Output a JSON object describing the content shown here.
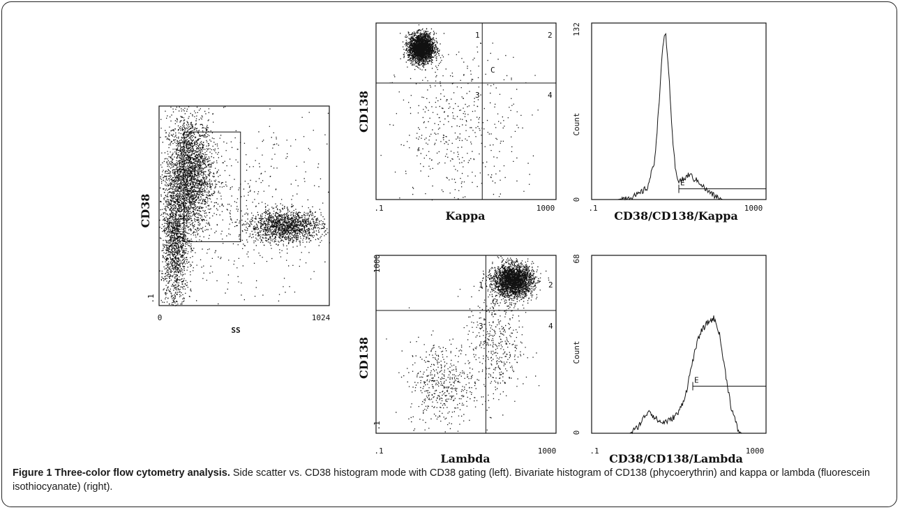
{
  "figure": {
    "caption_title": "Figure 1 Three-color flow cytometry analysis.",
    "caption_text": "Side scatter vs. CD38 histogram mode with CD38 gating (left). Bivariate histogram of CD138 (phycoerythrin) and kappa or lambda (fluorescein isothiocyanate) (right)."
  },
  "chart_data": [
    {
      "type": "scatter",
      "xlabel": "SS",
      "ylabel": "CD38",
      "xlim": [
        0,
        1024
      ],
      "x_ticklabels": [
        "0",
        "1024"
      ],
      "y_ticklabels": [
        ".1"
      ],
      "populations": [
        {
          "x": 180,
          "y": 0.66,
          "sx": 70,
          "sy": 0.15,
          "density": "very high"
        },
        {
          "x": 95,
          "y": 0.32,
          "sx": 40,
          "sy": 0.17,
          "density": "high"
        },
        {
          "x": 760,
          "y": 0.4,
          "sx": 110,
          "sy": 0.04,
          "density": "high"
        },
        {
          "x": 500,
          "y": 0.5,
          "sx": 270,
          "sy": 0.28,
          "density": "low"
        }
      ],
      "gate": {
        "x": [
          150,
          490
        ],
        "y": [
          0.32,
          0.87
        ]
      }
    },
    {
      "type": "scatter",
      "xlabel": "Kappa",
      "ylabel": "CD138",
      "x_ticklabels": [
        ".1",
        "1000"
      ],
      "quadrant_split": {
        "x": 0.59,
        "y": 0.66
      },
      "quadrant_labels": [
        "1",
        "2",
        "3",
        "4"
      ],
      "region_label": "C",
      "populations": [
        {
          "x": 0.25,
          "y": 0.86,
          "sx": 0.035,
          "sy": 0.04,
          "density": "very high"
        },
        {
          "x": 0.46,
          "y": 0.4,
          "sx": 0.17,
          "sy": 0.22,
          "density": "low"
        }
      ]
    },
    {
      "type": "area",
      "xlabel": "CD38/CD138/Kappa",
      "ylabel": "Count",
      "ylim": [
        0,
        132
      ],
      "x_ticklabels": [
        ".1",
        "1000"
      ],
      "y_ticklabels": [
        "0",
        "132"
      ],
      "curve": [
        [
          0.0,
          0
        ],
        [
          0.15,
          0
        ],
        [
          0.26,
          3
        ],
        [
          0.32,
          9
        ],
        [
          0.36,
          28
        ],
        [
          0.38,
          60
        ],
        [
          0.4,
          100
        ],
        [
          0.415,
          122
        ],
        [
          0.425,
          123
        ],
        [
          0.44,
          100
        ],
        [
          0.46,
          52
        ],
        [
          0.48,
          22
        ],
        [
          0.5,
          14
        ],
        [
          0.53,
          15
        ],
        [
          0.56,
          19
        ],
        [
          0.59,
          15
        ],
        [
          0.62,
          13
        ],
        [
          0.65,
          8
        ],
        [
          0.7,
          3
        ],
        [
          0.75,
          0
        ],
        [
          1.0,
          0
        ]
      ],
      "marker": {
        "label": "E",
        "x": [
          0.5,
          1.0
        ],
        "y": 8
      }
    },
    {
      "type": "scatter",
      "xlabel": "Lambda",
      "ylabel": "CD138",
      "x_ticklabels": [
        ".1",
        "1000"
      ],
      "y_ticklabels": [
        "1000",
        ".1"
      ],
      "quadrant_split": {
        "x": 0.61,
        "y": 0.69
      },
      "quadrant_labels": [
        "1",
        "2",
        "3",
        "4"
      ],
      "region_label": "C",
      "populations": [
        {
          "x": 0.76,
          "y": 0.86,
          "sx": 0.055,
          "sy": 0.045,
          "density": "very high"
        },
        {
          "x": 0.66,
          "y": 0.5,
          "sx": 0.08,
          "sy": 0.17,
          "density": "low"
        },
        {
          "x": 0.36,
          "y": 0.28,
          "sx": 0.09,
          "sy": 0.12,
          "density": "low"
        }
      ]
    },
    {
      "type": "area",
      "xlabel": "CD38/CD138/Lambda",
      "ylabel": "Count",
      "ylim": [
        0,
        68
      ],
      "x_ticklabels": [
        ".1",
        "1000"
      ],
      "y_ticklabels": [
        "0",
        "68"
      ],
      "curve": [
        [
          0.0,
          0
        ],
        [
          0.22,
          0
        ],
        [
          0.26,
          2
        ],
        [
          0.3,
          6
        ],
        [
          0.33,
          9
        ],
        [
          0.36,
          6
        ],
        [
          0.4,
          4
        ],
        [
          0.45,
          5
        ],
        [
          0.5,
          8
        ],
        [
          0.54,
          15
        ],
        [
          0.58,
          28
        ],
        [
          0.62,
          38
        ],
        [
          0.66,
          42
        ],
        [
          0.7,
          44
        ],
        [
          0.73,
          39
        ],
        [
          0.76,
          26
        ],
        [
          0.8,
          10
        ],
        [
          0.84,
          1
        ],
        [
          0.86,
          0
        ],
        [
          1.0,
          0
        ]
      ],
      "marker": {
        "label": "E",
        "x": [
          0.58,
          1.0
        ],
        "y": 18
      }
    }
  ]
}
